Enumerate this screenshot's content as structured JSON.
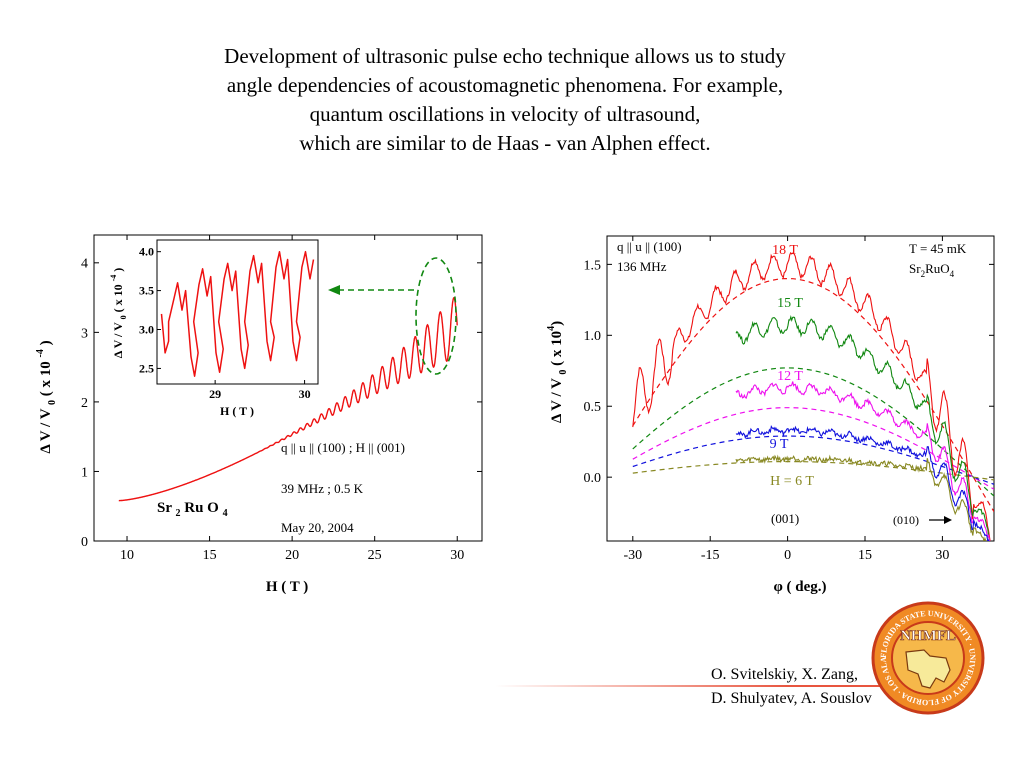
{
  "title_lines": [
    "Development of ultrasonic pulse echo technique allows us to study",
    "angle dependencies of acoustomagnetic phenomena. For example,",
    "quantum oscillations in velocity of ultrasound,",
    "which are similar to de Haas - van Alphen effect."
  ],
  "authors": [
    "O. Svitelskiy, X. Zang,",
    "D. Shulyatev, A. Souslov"
  ],
  "logo": {
    "text": "NHMFL",
    "ring_text": "FLORIDA STATE UNIVERSITY · UNIVERSITY OF FLORIDA · LOS ALAMOS"
  },
  "colors": {
    "red": "#ee1111",
    "green": "#118811",
    "magenta": "#ee11ee",
    "blue": "#1111dd",
    "olive": "#888822",
    "accent": "#e8553f"
  },
  "chart_data": [
    {
      "type": "line",
      "title": "",
      "xlabel": "H ( T )",
      "ylabel": "Δ V / V 0 ( x 10 -4 )",
      "xlim": [
        8,
        31.5
      ],
      "ylim": [
        0,
        4.4
      ],
      "xticks": [
        10,
        15,
        20,
        25,
        30
      ],
      "yticks": [
        0,
        1,
        2,
        3,
        4
      ],
      "series": [
        {
          "name": "",
          "x_range": [
            9.5,
            30
          ],
          "y_start": 0.58,
          "y_end": 3.1,
          "oscillation_amplitude_end": 0.9
        }
      ],
      "annotations": {
        "compound": "Sr 2 Ru O 4",
        "orientation": "q || u || (100) ;  H || (001)",
        "conditions": "39 MHz ; 0.5 K",
        "date": "May 20, 2004"
      },
      "inset": {
        "xlabel": "H ( T )",
        "ylabel": "Δ V / V 0 ( x 10 -4 )",
        "xlim": [
          28.35,
          30.15
        ],
        "ylim": [
          2.3,
          4.15
        ],
        "xticks": [
          29,
          30
        ],
        "yticks": [
          2.5,
          3.0,
          3.5,
          4.0
        ],
        "ytick_labels": [
          "2.5",
          "3.0",
          "3.5",
          "4.0"
        ],
        "peaks_x": [
          28.58,
          28.86,
          29.14,
          29.43,
          29.72,
          30.01
        ],
        "peak_values": [
          3.6,
          3.78,
          3.85,
          3.95,
          4.0,
          4.0
        ],
        "trough_values": [
          2.4,
          2.45,
          2.5,
          2.6,
          2.6,
          2.65
        ]
      }
    },
    {
      "type": "line",
      "title": "",
      "xlabel": "φ ( deg.)",
      "ylabel": "Δ V / V 0 ( x 10 4 )",
      "xlim": [
        -35,
        40
      ],
      "ylim": [
        -0.45,
        1.7
      ],
      "xticks": [
        -30,
        -15,
        0,
        15,
        30
      ],
      "yticks": [
        0.0,
        0.5,
        1.0,
        1.5
      ],
      "ytick_labels": [
        "0.0",
        "0.5",
        "1.0",
        "1.5"
      ],
      "series": [
        {
          "name": "18 T",
          "color": "#ee1111",
          "center": 1.5,
          "phi_range": [
            -30,
            40
          ],
          "dashed_fit_center": 1.4
        },
        {
          "name": "15 T",
          "color": "#118811",
          "center": 1.07,
          "phi_range": [
            -10,
            40
          ],
          "dashed_fit_center": 0.77
        },
        {
          "name": "12 T",
          "color": "#ee11ee",
          "center": 0.63,
          "phi_range": [
            -10,
            40
          ],
          "dashed_fit_center": 0.49
        },
        {
          "name": "9 T",
          "color": "#1111dd",
          "center": 0.33,
          "phi_range": [
            -10,
            40
          ],
          "dashed_fit_center": 0.29
        },
        {
          "name": "H = 6 T",
          "color": "#888822",
          "center": 0.13,
          "phi_range": [
            -10,
            40
          ],
          "dashed_fit_center": 0.11
        }
      ],
      "annotations": {
        "orientation": "q || u || (100)",
        "frequency": "136 MHz",
        "temperature": "T = 45 mK",
        "compound": "Sr2RuO4",
        "dir_left": "(001)",
        "dir_right": "(010)"
      }
    }
  ]
}
